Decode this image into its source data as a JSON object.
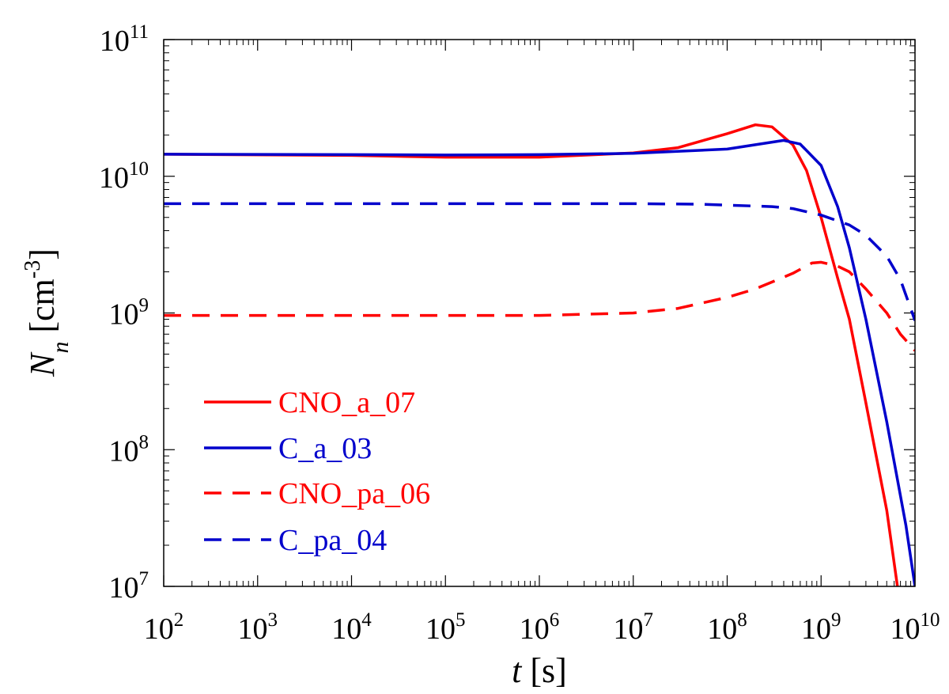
{
  "chart_data": {
    "type": "line",
    "title": "",
    "x_scale": "log",
    "y_scale": "log",
    "xlim": [
      100,
      10000000000
    ],
    "ylim": [
      10000000,
      100000000000
    ],
    "x_ticks": [
      {
        "base": "10",
        "exp": "2"
      },
      {
        "base": "10",
        "exp": "3"
      },
      {
        "base": "10",
        "exp": "4"
      },
      {
        "base": "10",
        "exp": "5"
      },
      {
        "base": "10",
        "exp": "6"
      },
      {
        "base": "10",
        "exp": "7"
      },
      {
        "base": "10",
        "exp": "8"
      },
      {
        "base": "10",
        "exp": "9"
      },
      {
        "base": "10",
        "exp": "10"
      }
    ],
    "y_ticks": [
      {
        "base": "10",
        "exp": "7"
      },
      {
        "base": "10",
        "exp": "8"
      },
      {
        "base": "10",
        "exp": "9"
      },
      {
        "base": "10",
        "exp": "10"
      },
      {
        "base": "10",
        "exp": "11"
      }
    ],
    "xlabel": {
      "var": "t",
      "unit": " [s]"
    },
    "ylabel": {
      "var": "N",
      "sub": "n",
      "unit_open": " [cm",
      "unit_exp": "-3",
      "unit_close": "]"
    },
    "grid": false,
    "legend_position": "lower-left",
    "series": [
      {
        "name": "CNO_a_07",
        "color": "#ff0000",
        "dash": "solid",
        "points": [
          [
            100,
            14500000000.0
          ],
          [
            10000.0,
            14200000000.0
          ],
          [
            100000.0,
            13800000000.0
          ],
          [
            1000000.0,
            13800000000.0
          ],
          [
            10000000.0,
            14800000000.0
          ],
          [
            30000000.0,
            16200000000.0
          ],
          [
            100000000.0,
            20500000000.0
          ],
          [
            200000000.0,
            23800000000.0
          ],
          [
            300000000.0,
            23000000000.0
          ],
          [
            500000000.0,
            17000000000.0
          ],
          [
            700000000.0,
            11000000000.0
          ],
          [
            1000000000.0,
            5000000000.0
          ],
          [
            1500000000.0,
            1800000000.0
          ],
          [
            2000000000.0,
            900000000.0
          ],
          [
            3000000000.0,
            220000000.0
          ],
          [
            5000000000.0,
            36000000.0
          ],
          [
            6500000000.0,
            10000000.0
          ]
        ]
      },
      {
        "name": "C_a_03",
        "color": "#0000cc",
        "dash": "solid",
        "points": [
          [
            100,
            14500000000.0
          ],
          [
            10000.0,
            14400000000.0
          ],
          [
            100000.0,
            14300000000.0
          ],
          [
            1000000.0,
            14400000000.0
          ],
          [
            10000000.0,
            14700000000.0
          ],
          [
            100000000.0,
            15800000000.0
          ],
          [
            200000000.0,
            17000000000.0
          ],
          [
            400000000.0,
            18300000000.0
          ],
          [
            600000000.0,
            17200000000.0
          ],
          [
            1000000000.0,
            12000000000.0
          ],
          [
            1500000000.0,
            6000000000.0
          ],
          [
            2000000000.0,
            3000000000.0
          ],
          [
            3000000000.0,
            900000000.0
          ],
          [
            5000000000.0,
            160000000.0
          ],
          [
            8000000000.0,
            28000000.0
          ],
          [
            10000000000.0,
            10000000.0
          ]
        ]
      },
      {
        "name": "CNO_pa_06",
        "color": "#ff0000",
        "dash": "dashed",
        "points": [
          [
            100,
            960000000.0
          ],
          [
            10000.0,
            960000000.0
          ],
          [
            100000.0,
            960000000.0
          ],
          [
            1000000.0,
            960000000.0
          ],
          [
            10000000.0,
            1000000000.0
          ],
          [
            30000000.0,
            1080000000.0
          ],
          [
            100000000.0,
            1300000000.0
          ],
          [
            200000000.0,
            1500000000.0
          ],
          [
            500000000.0,
            1950000000.0
          ],
          [
            800000000.0,
            2320000000.0
          ],
          [
            1000000000.0,
            2350000000.0
          ],
          [
            1500000000.0,
            2200000000.0
          ],
          [
            2000000000.0,
            2000000000.0
          ],
          [
            3000000000.0,
            1500000000.0
          ],
          [
            5000000000.0,
            1000000000.0
          ],
          [
            7000000000.0,
            700000000.0
          ],
          [
            10000000000.0,
            530000000.0
          ]
        ]
      },
      {
        "name": "C_pa_04",
        "color": "#0000cc",
        "dash": "dashed",
        "points": [
          [
            100,
            6300000000.0
          ],
          [
            1000000.0,
            6300000000.0
          ],
          [
            10000000.0,
            6300000000.0
          ],
          [
            50000000.0,
            6250000000.0
          ],
          [
            100000000.0,
            6150000000.0
          ],
          [
            300000000.0,
            6000000000.0
          ],
          [
            500000000.0,
            5800000000.0
          ],
          [
            1000000000.0,
            5200000000.0
          ],
          [
            2000000000.0,
            4400000000.0
          ],
          [
            3000000000.0,
            3700000000.0
          ],
          [
            5000000000.0,
            2600000000.0
          ],
          [
            7000000000.0,
            1750000000.0
          ],
          [
            10000000000.0,
            880000000.0
          ]
        ]
      }
    ]
  }
}
